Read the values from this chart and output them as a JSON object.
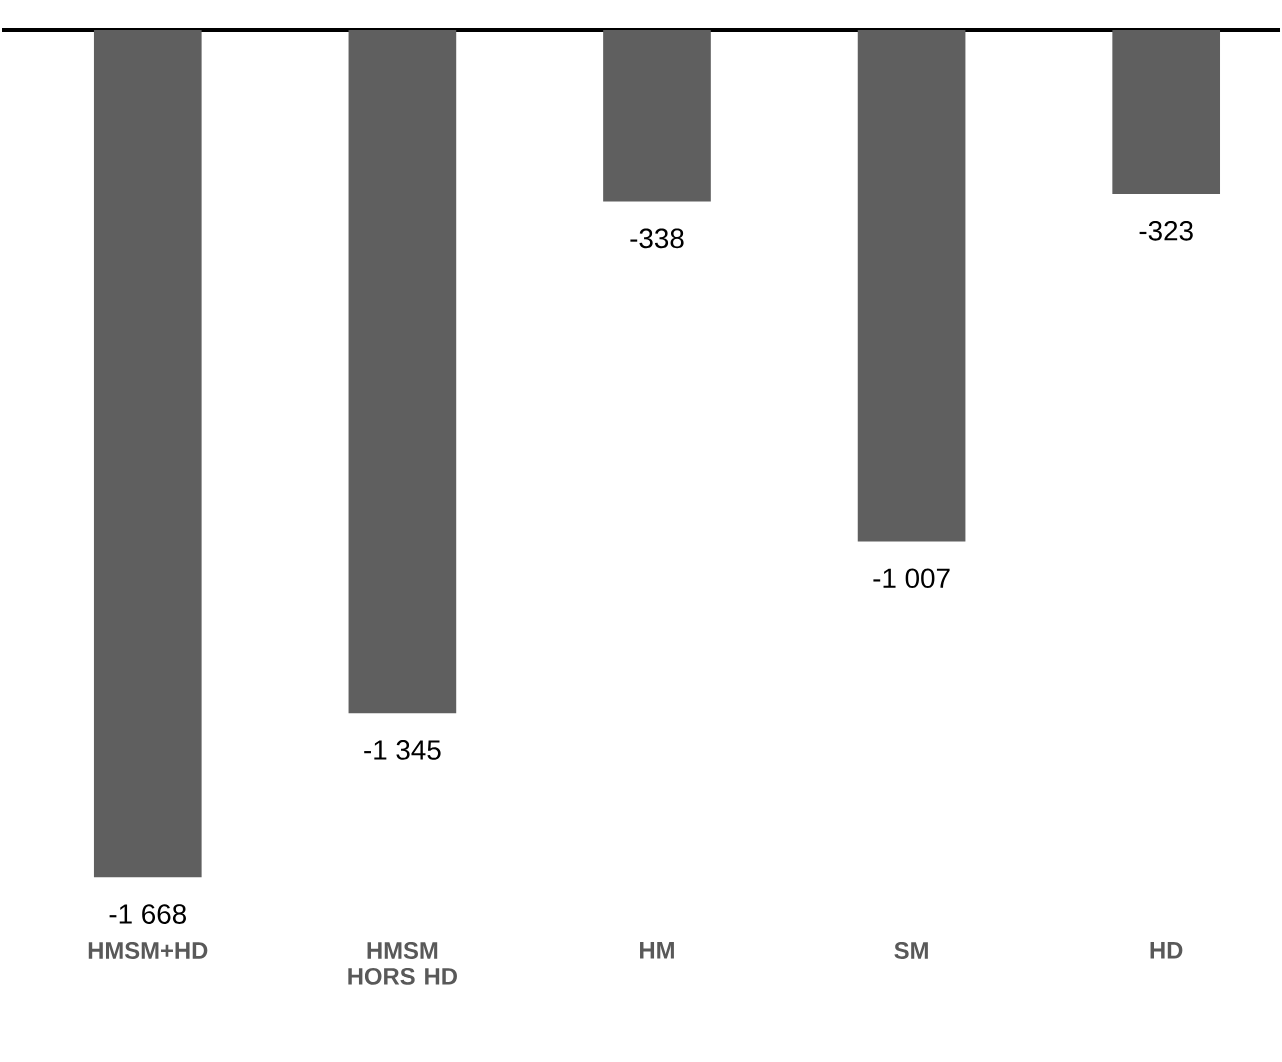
{
  "chart_data": {
    "type": "bar",
    "categories": [
      "HMSM+HD",
      "HMSM HORS HD",
      "HM",
      "SM",
      "HD"
    ],
    "values": [
      -1668,
      -1345,
      -338,
      -1007,
      -323
    ],
    "value_labels": [
      "-1 668",
      "-1 345",
      "-338",
      "-1 007",
      "-323"
    ],
    "color": "#5f5f5f"
  }
}
